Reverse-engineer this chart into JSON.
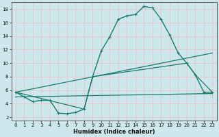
{
  "xlabel": "Humidex (Indice chaleur)",
  "ylabel": "",
  "background_color": "#cce8ec",
  "grid_color": "#e8c8c8",
  "line_color": "#1a7a6e",
  "xlim": [
    -0.5,
    23.5
  ],
  "ylim": [
    1.5,
    19.0
  ],
  "yticks": [
    2,
    4,
    6,
    8,
    10,
    12,
    14,
    16,
    18
  ],
  "xticks": [
    0,
    1,
    2,
    3,
    4,
    5,
    6,
    7,
    8,
    9,
    10,
    11,
    12,
    13,
    14,
    15,
    16,
    17,
    18,
    19,
    20,
    21,
    22,
    23
  ],
  "curve1_x": [
    0,
    1,
    2,
    3,
    4,
    5,
    6,
    7,
    8,
    9,
    10,
    11,
    12,
    13,
    14,
    15,
    16,
    17,
    18,
    19,
    20,
    21,
    22,
    23
  ],
  "curve1_y": [
    5.7,
    5.0,
    4.3,
    4.5,
    4.5,
    2.6,
    2.5,
    2.7,
    3.2,
    8.0,
    11.8,
    13.9,
    16.5,
    17.0,
    17.2,
    18.4,
    18.2,
    16.5,
    14.2,
    11.5,
    10.0,
    8.3,
    5.7,
    5.7
  ],
  "curve2_x": [
    0,
    23
  ],
  "curve2_y": [
    5.7,
    11.5
  ],
  "curve3_x": [
    0,
    8,
    9,
    20,
    21,
    23
  ],
  "curve3_y": [
    5.7,
    3.2,
    8.0,
    10.0,
    8.3,
    5.7
  ],
  "curve4_x": [
    0,
    23
  ],
  "curve4_y": [
    5.0,
    5.5
  ]
}
